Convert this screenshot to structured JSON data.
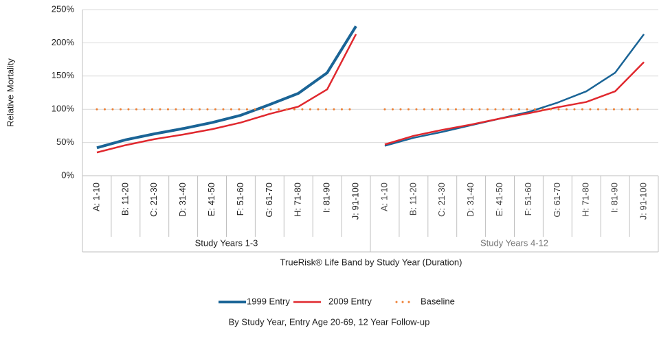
{
  "chart_data": {
    "type": "line",
    "y_label": "Relative Mortality",
    "x_label": "TrueRisk® Life Band by Study Year (Duration)",
    "footnote": "By Study Year, Entry Age 20-69, 12 Year Follow-up",
    "groups": [
      {
        "label": "Study Years 1-3",
        "categories": [
          "A: 1-10",
          "B: 11-20",
          "C: 21-30",
          "D: 31-40",
          "E: 41-50",
          "F: 51-60",
          "G: 61-70",
          "H: 71-80",
          "I: 81-90",
          "J: 91-100"
        ]
      },
      {
        "label": "Study Years 4-12",
        "categories": [
          "A: 1-10",
          "B: 11-20",
          "C: 21-30",
          "D: 31-40",
          "E: 41-50",
          "F: 51-60",
          "G: 61-70",
          "H: 71-80",
          "I: 81-90",
          "J: 91-100"
        ]
      }
    ],
    "series": [
      {
        "name": "1999 Entry",
        "color": "#1a6496",
        "linestyle": "solid",
        "values": [
          [
            42,
            54,
            63,
            71,
            80,
            91,
            107,
            124,
            155,
            225
          ],
          [
            45,
            57,
            66,
            76,
            86,
            96,
            110,
            127,
            155,
            213
          ]
        ]
      },
      {
        "name": "2009 Entry",
        "color": "#e0282e",
        "linestyle": "solid",
        "values": [
          [
            35,
            46,
            55,
            62,
            70,
            80,
            93,
            104,
            130,
            213
          ],
          [
            47,
            60,
            69,
            77,
            86,
            94,
            103,
            111,
            127,
            171
          ]
        ]
      },
      {
        "name": "Baseline",
        "color": "#ed7d31",
        "linestyle": "dotted",
        "values": [
          [
            100,
            100,
            100,
            100,
            100,
            100,
            100,
            100,
            100,
            100
          ],
          [
            100,
            100,
            100,
            100,
            100,
            100,
            100,
            100,
            100,
            100
          ]
        ]
      }
    ],
    "ylim": [
      0,
      250
    ],
    "yticks": [
      {
        "value": 0,
        "label": "0%"
      },
      {
        "value": 50,
        "label": "50%"
      },
      {
        "value": 100,
        "label": "100%"
      },
      {
        "value": 150,
        "label": "150%"
      },
      {
        "value": 200,
        "label": "200%"
      },
      {
        "value": 250,
        "label": "250%"
      }
    ],
    "grid": true,
    "legend": "bottom"
  }
}
